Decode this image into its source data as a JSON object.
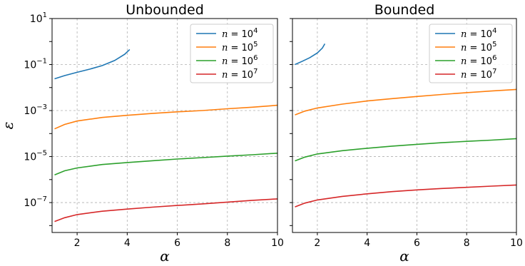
{
  "chart_data": [
    {
      "type": "line",
      "title": "Unbounded",
      "xlabel": "α",
      "ylabel": "ε",
      "xlim": [
        1,
        10
      ],
      "ylim_log10": [
        -8.3,
        1
      ],
      "yscale": "log",
      "grid": true,
      "legend_position": "top-right",
      "x_ticks": [
        2,
        4,
        6,
        8,
        10
      ],
      "y_ticks_log10": [
        1,
        -1,
        -3,
        -5,
        -7
      ],
      "series": [
        {
          "name": "n = 10^4",
          "color": "#1f77b4",
          "x": [
            1.1,
            1.5,
            2.0,
            2.5,
            3.0,
            3.5,
            3.9,
            4.1
          ],
          "y": [
            0.024,
            0.033,
            0.046,
            0.063,
            0.09,
            0.15,
            0.28,
            0.45
          ]
        },
        {
          "name": "n = 10^5",
          "color": "#ff7f0e",
          "x": [
            1.1,
            1.5,
            2,
            3,
            4,
            5,
            6,
            7,
            8,
            9,
            10
          ],
          "y": [
            0.00016,
            0.00025,
            0.00035,
            0.0005,
            0.00062,
            0.00075,
            0.00088,
            0.001,
            0.0012,
            0.0014,
            0.0017
          ]
        },
        {
          "name": "n = 10^6",
          "color": "#2ca02c",
          "x": [
            1.1,
            1.5,
            2,
            3,
            4,
            5,
            6,
            7,
            8,
            9,
            10
          ],
          "y": [
            1.6e-06,
            2.4e-06,
            3.2e-06,
            4.5e-06,
            5.5e-06,
            6.6e-06,
            7.8e-06,
            9e-06,
            1.05e-05,
            1.2e-05,
            1.4e-05
          ]
        },
        {
          "name": "n = 10^7",
          "color": "#d62728",
          "x": [
            1.1,
            1.5,
            2,
            3,
            4,
            5,
            6,
            7,
            8,
            9,
            10
          ],
          "y": [
            1.5e-08,
            2.2e-08,
            3e-08,
            4.2e-08,
            5.2e-08,
            6.3e-08,
            7.5e-08,
            8.8e-08,
            1.05e-07,
            1.25e-07,
            1.45e-07
          ]
        }
      ]
    },
    {
      "type": "line",
      "title": "Bounded",
      "xlabel": "α",
      "ylabel": "",
      "xlim": [
        1,
        10
      ],
      "ylim_log10": [
        -8.3,
        1
      ],
      "yscale": "log",
      "grid": true,
      "legend_position": "top-right",
      "x_ticks": [
        2,
        4,
        6,
        8,
        10
      ],
      "y_ticks_log10": [],
      "series": [
        {
          "name": "n = 10^4",
          "color": "#1f77b4",
          "x": [
            1.1,
            1.4,
            1.7,
            2.0,
            2.2,
            2.3
          ],
          "y": [
            0.1,
            0.14,
            0.2,
            0.32,
            0.52,
            0.8
          ]
        },
        {
          "name": "n = 10^5",
          "color": "#ff7f0e",
          "x": [
            1.1,
            1.5,
            2,
            3,
            4,
            5,
            6,
            7,
            8,
            9,
            10
          ],
          "y": [
            0.00065,
            0.00095,
            0.0013,
            0.0019,
            0.0026,
            0.0033,
            0.0041,
            0.005,
            0.006,
            0.0071,
            0.0083
          ]
        },
        {
          "name": "n = 10^6",
          "color": "#2ca02c",
          "x": [
            1.1,
            1.5,
            2,
            3,
            4,
            5,
            6,
            7,
            8,
            9,
            10
          ],
          "y": [
            6.5e-06,
            9.5e-06,
            1.3e-05,
            1.8e-05,
            2.3e-05,
            2.85e-05,
            3.4e-05,
            4e-05,
            4.6e-05,
            5.2e-05,
            6e-05
          ]
        },
        {
          "name": "n = 10^7",
          "color": "#d62728",
          "x": [
            1.1,
            1.5,
            2,
            3,
            4,
            5,
            6,
            7,
            8,
            9,
            10
          ],
          "y": [
            6.5e-08,
            9.5e-08,
            1.3e-07,
            1.85e-07,
            2.4e-07,
            3e-07,
            3.55e-07,
            4.1e-07,
            4.6e-07,
            5.2e-07,
            5.8e-07
          ]
        }
      ]
    }
  ]
}
